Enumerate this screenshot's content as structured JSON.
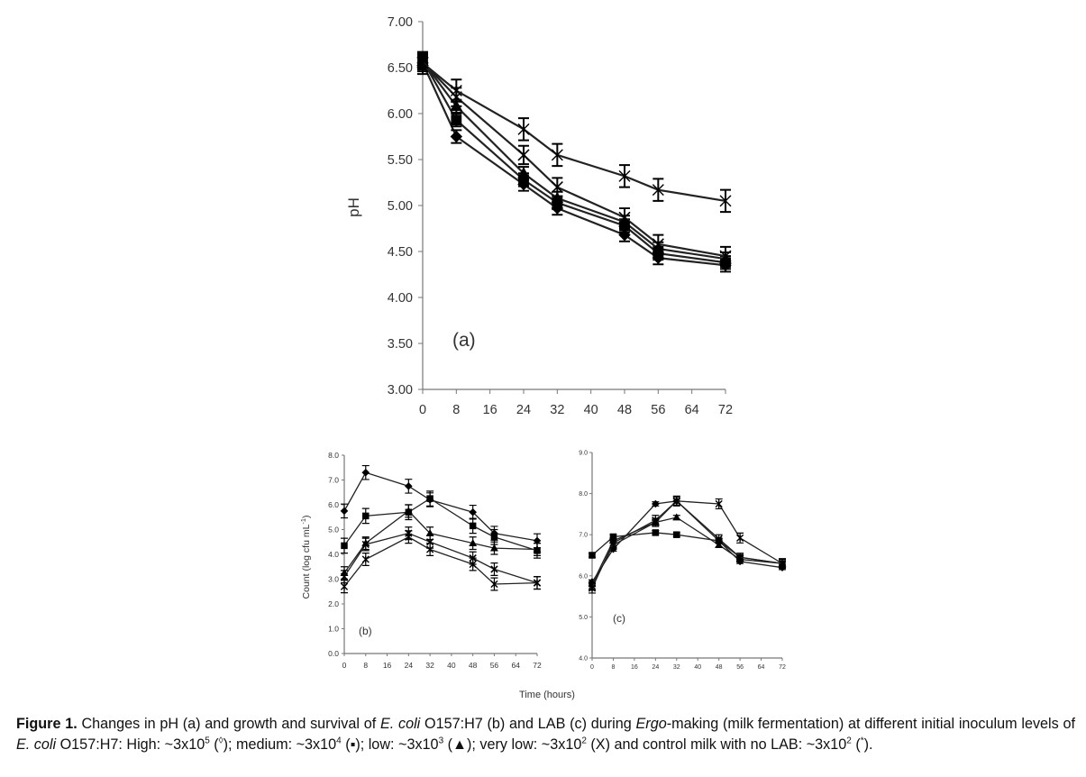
{
  "caption": {
    "label": "Figure 1.",
    "parts": [
      {
        "t": " Changes in pH (a) and growth and survival of "
      },
      {
        "t": "E. coli",
        "i": true
      },
      {
        "t": " O157:H7 (b) and LAB (c) during "
      },
      {
        "t": "Ergo",
        "i": true
      },
      {
        "t": "-making (milk fermentation) at different initial inoculum levels of "
      },
      {
        "t": "E. coli",
        "i": true
      },
      {
        "t": " O157:H7: High: ~3x10"
      },
      {
        "t": "5",
        "sup": true
      },
      {
        "t": " ("
      },
      {
        "t": "◊",
        "sup": true
      },
      {
        "t": "); medium: ~3x10"
      },
      {
        "t": "4",
        "sup": true
      },
      {
        "t": " (▪); low: ~3x10"
      },
      {
        "t": "3",
        "sup": true
      },
      {
        "t": " (▲); very low: ~3x10"
      },
      {
        "t": "2",
        "sup": true
      },
      {
        "t": " (X) and control milk with no LAB: ~3x10"
      },
      {
        "t": "2",
        "sup": true
      },
      {
        "t": " ("
      },
      {
        "t": "*",
        "sup": true
      },
      {
        "t": ")."
      }
    ]
  },
  "shared_xlabel": "Time (hours)",
  "chart_data": [
    {
      "id": "a",
      "type": "line",
      "panel_label": "(a)",
      "title": "",
      "xlabel": "",
      "ylabel": "pH",
      "xlim": [
        0,
        72
      ],
      "ylim": [
        3.0,
        7.0
      ],
      "xticks": [
        0,
        8,
        16,
        24,
        32,
        40,
        48,
        56,
        64,
        72
      ],
      "yticks": [
        "3.00",
        "3.50",
        "4.00",
        "4.50",
        "5.00",
        "5.50",
        "6.00",
        "6.50",
        "7.00"
      ],
      "ytick_values": [
        3.0,
        3.5,
        4.0,
        4.5,
        5.0,
        5.5,
        6.0,
        6.5,
        7.0
      ],
      "x": [
        0,
        8,
        24,
        32,
        48,
        56,
        72
      ],
      "series": [
        {
          "name": "High ~3x10^5",
          "marker": "diamond",
          "values": [
            6.55,
            5.75,
            5.23,
            4.97,
            4.68,
            4.43,
            4.35
          ],
          "err": 0.07
        },
        {
          "name": "Medium ~3x10^4",
          "marker": "square",
          "values": [
            6.58,
            5.93,
            5.28,
            5.03,
            4.78,
            4.48,
            4.38
          ],
          "err": 0.07
        },
        {
          "name": "Low ~3x10^3",
          "marker": "triangle",
          "values": [
            6.57,
            6.08,
            5.35,
            5.08,
            4.82,
            4.53,
            4.42
          ],
          "err": 0.07
        },
        {
          "name": "Very low ~3x10^2",
          "marker": "x",
          "values": [
            6.56,
            6.18,
            5.55,
            5.2,
            4.87,
            4.58,
            4.45
          ],
          "err": 0.1
        },
        {
          "name": "Control no LAB",
          "marker": "star",
          "values": [
            6.55,
            6.25,
            5.83,
            5.55,
            5.32,
            5.17,
            5.05
          ],
          "err": 0.12
        }
      ]
    },
    {
      "id": "b",
      "type": "line",
      "panel_label": "(b)",
      "title": "",
      "xlabel": "",
      "ylabel": "Count (log cfu mL-1)",
      "xlim": [
        0,
        72
      ],
      "ylim": [
        0.0,
        8.0
      ],
      "xticks": [
        0,
        8,
        16,
        24,
        32,
        40,
        48,
        56,
        64,
        72
      ],
      "yticks": [
        "0.0",
        "1.0",
        "2.0",
        "3.0",
        "4.0",
        "5.0",
        "6.0",
        "7.0",
        "8.0"
      ],
      "ytick_values": [
        0,
        1,
        2,
        3,
        4,
        5,
        6,
        7,
        8
      ],
      "x": [
        0,
        8,
        24,
        32,
        48,
        56,
        72
      ],
      "series": [
        {
          "name": "High ~3x10^5",
          "marker": "diamond",
          "values": [
            5.75,
            7.3,
            6.75,
            6.2,
            5.7,
            4.85,
            4.55
          ],
          "err": 0.28
        },
        {
          "name": "Medium ~3x10^4",
          "marker": "square",
          "values": [
            4.35,
            5.55,
            5.7,
            6.25,
            5.15,
            4.7,
            4.15
          ],
          "err": 0.3
        },
        {
          "name": "Low ~3x10^3",
          "marker": "triangle",
          "values": [
            3.25,
            4.45,
            5.75,
            4.85,
            4.45,
            4.25,
            4.2
          ],
          "err": 0.25
        },
        {
          "name": "Very low ~3x10^2",
          "marker": "x",
          "values": [
            3.1,
            4.4,
            4.85,
            4.5,
            3.85,
            3.4,
            2.85
          ],
          "err": 0.25
        },
        {
          "name": "Control",
          "marker": "star",
          "values": [
            2.7,
            3.8,
            4.7,
            4.2,
            3.6,
            2.8,
            2.85
          ],
          "err": 0.25
        }
      ]
    },
    {
      "id": "c",
      "type": "line",
      "panel_label": "(c)",
      "title": "",
      "xlabel": "",
      "ylabel": "",
      "xlim": [
        0,
        72
      ],
      "ylim": [
        4.0,
        9.0
      ],
      "xticks": [
        0,
        8,
        16,
        24,
        32,
        40,
        48,
        56,
        64,
        72
      ],
      "yticks": [
        "4.0",
        "5.0",
        "6.0",
        "7.0",
        "8.0",
        "9.0"
      ],
      "ytick_values": [
        4,
        5,
        6,
        7,
        8,
        9
      ],
      "x": [
        0,
        8,
        24,
        32,
        48,
        56,
        72
      ],
      "series": [
        {
          "name": "High",
          "marker": "diamond",
          "values": [
            5.85,
            6.65,
            7.75,
            7.82,
            6.85,
            6.35,
            6.2
          ],
          "err": 0.05
        },
        {
          "name": "Medium",
          "marker": "square",
          "values": [
            6.5,
            6.95,
            7.05,
            7.0,
            6.85,
            6.45,
            6.3
          ],
          "err": 0.05
        },
        {
          "name": "Low",
          "marker": "triangle",
          "values": [
            5.8,
            6.85,
            7.3,
            7.42,
            6.75,
            6.4,
            6.3
          ],
          "err": 0.05
        },
        {
          "name": "Very low",
          "marker": "x",
          "values": [
            5.75,
            6.75,
            7.3,
            7.82,
            6.9,
            6.45,
            6.3
          ],
          "err": 0.1
        },
        {
          "name": "Control",
          "marker": "star",
          "values": [
            5.7,
            6.8,
            7.35,
            7.82,
            7.75,
            6.92,
            6.3
          ],
          "err": 0.12
        }
      ]
    }
  ]
}
